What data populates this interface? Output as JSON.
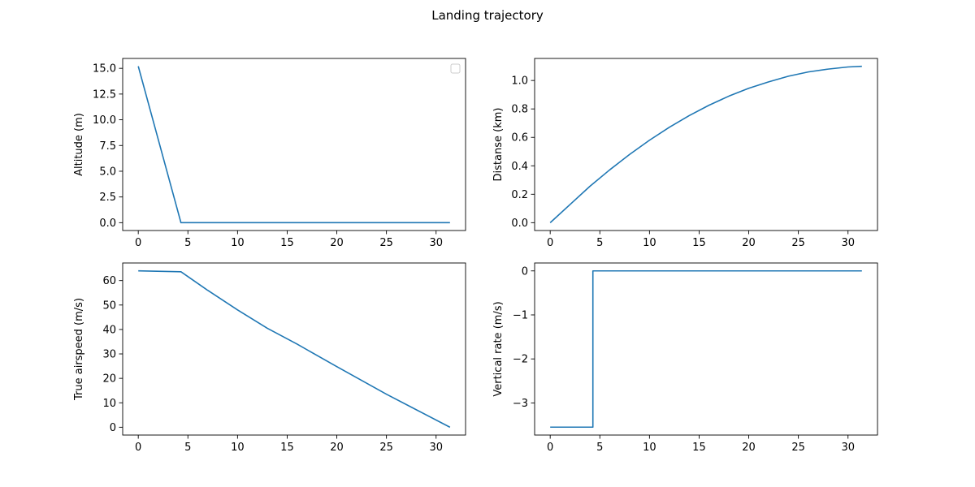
{
  "figure": {
    "title": "Landing trajectory"
  },
  "colors": {
    "series": "#1f77b4",
    "axes": "#000000",
    "background": "#ffffff"
  },
  "chart_data": [
    {
      "type": "line",
      "xlabel": "",
      "ylabel": "Altitude (m)",
      "xlim": [
        -1.57,
        32.97
      ],
      "ylim": [
        -0.76,
        15.96
      ],
      "xticks": [
        0,
        5,
        10,
        15,
        20,
        25,
        30
      ],
      "yticks": [
        0.0,
        2.5,
        5.0,
        7.5,
        10.0,
        12.5,
        15.0
      ],
      "tick_decimals": 1,
      "legend": {
        "visible": true,
        "location": "upper right",
        "entries": []
      },
      "grid": false,
      "series": [
        {
          "x": [
            0,
            4.3,
            31.4
          ],
          "y": [
            15.2,
            0,
            0
          ]
        }
      ]
    },
    {
      "type": "line",
      "xlabel": "",
      "ylabel": "Distanse (km)",
      "xlim": [
        -1.57,
        32.97
      ],
      "ylim": [
        -0.055,
        1.155
      ],
      "xticks": [
        0,
        5,
        10,
        15,
        20,
        25,
        30
      ],
      "yticks": [
        0.0,
        0.2,
        0.4,
        0.6,
        0.8,
        1.0
      ],
      "tick_decimals": 1,
      "grid": false,
      "series": [
        {
          "x": [
            0,
            2,
            4,
            6,
            8,
            10,
            12,
            14,
            16,
            18,
            20,
            22,
            24,
            26,
            28,
            30,
            31.4
          ],
          "y": [
            0.0,
            0.128,
            0.256,
            0.372,
            0.48,
            0.58,
            0.671,
            0.753,
            0.826,
            0.89,
            0.945,
            0.99,
            1.03,
            1.06,
            1.08,
            1.095,
            1.1
          ]
        }
      ]
    },
    {
      "type": "line",
      "xlabel": "",
      "ylabel": "True airspeed (m/s)",
      "xlim": [
        -1.57,
        32.97
      ],
      "ylim": [
        -3.2,
        67.2
      ],
      "xticks": [
        0,
        5,
        10,
        15,
        20,
        25,
        30
      ],
      "yticks": [
        0,
        10,
        20,
        30,
        40,
        50,
        60
      ],
      "tick_decimals": 0,
      "grid": false,
      "series": [
        {
          "x": [
            0,
            4.3,
            7,
            10,
            13,
            16,
            20,
            25,
            31.4
          ],
          "y": [
            64,
            63.6,
            56,
            48,
            40.5,
            34,
            24.8,
            13.5,
            0
          ]
        }
      ]
    },
    {
      "type": "line",
      "xlabel": "",
      "ylabel": "Vertical rate (m/s)",
      "xlim": [
        -1.57,
        32.97
      ],
      "ylim": [
        -3.73,
        0.18
      ],
      "xticks": [
        0,
        5,
        10,
        15,
        20,
        25,
        30
      ],
      "yticks": [
        -3,
        -2,
        -1,
        0
      ],
      "tick_decimals": 0,
      "grid": false,
      "series": [
        {
          "x": [
            0,
            4.3,
            4.3,
            31.4
          ],
          "y": [
            -3.55,
            -3.55,
            0,
            0
          ]
        }
      ]
    }
  ]
}
